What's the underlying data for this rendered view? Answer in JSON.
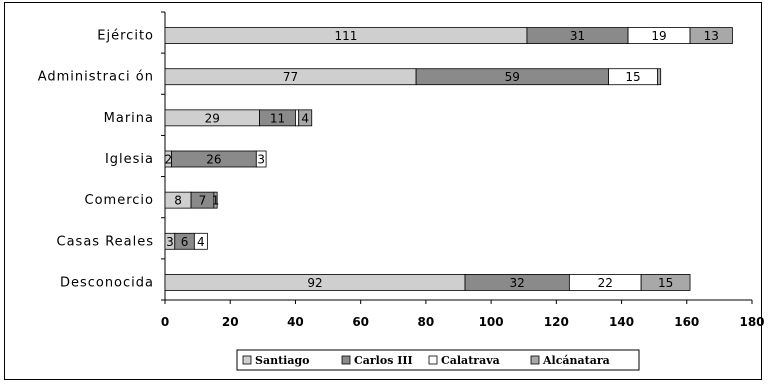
{
  "colors": {
    "Santiago": "#cfcfcf",
    "Carlos III": "#8a8a8a",
    "Calatrava": "#ffffff",
    "Alcánatara": "#a8a8a8"
  },
  "chart_data": {
    "type": "bar",
    "orientation": "horizontal",
    "stacked": true,
    "categories": [
      "Ejército",
      "Administración",
      "Marina",
      "Iglesia",
      "Comercio",
      "Casas Reales",
      "Desconocida"
    ],
    "category_labels": [
      "Ejército",
      "Administraci ón",
      "Marina",
      "Iglesia",
      "Comercio",
      "Casas Reales",
      "Desconocida"
    ],
    "series": [
      {
        "name": "Santiago",
        "values": [
          111,
          77,
          29,
          2,
          8,
          3,
          92
        ]
      },
      {
        "name": "Carlos III",
        "values": [
          31,
          59,
          11,
          26,
          7,
          6,
          32
        ]
      },
      {
        "name": "Calatrava",
        "values": [
          19,
          15,
          1,
          3,
          0,
          4,
          22
        ]
      },
      {
        "name": "Alcánatara",
        "values": [
          13,
          1,
          4,
          0,
          1,
          0,
          15
        ]
      }
    ],
    "data_labels": [
      [
        "111",
        "31",
        "19",
        "13"
      ],
      [
        "77",
        "59",
        "15",
        ""
      ],
      [
        "29",
        "11",
        "",
        "4"
      ],
      [
        "2",
        "26",
        "3",
        ""
      ],
      [
        "8",
        "7",
        "",
        "1"
      ],
      [
        "3",
        "6",
        "4",
        ""
      ],
      [
        "92",
        "32",
        "22",
        "15"
      ]
    ],
    "xlim": [
      0,
      180
    ],
    "xticks": [
      "0",
      "20",
      "40",
      "60",
      "80",
      "100",
      "120",
      "140",
      "160",
      "180"
    ],
    "legend_position": "bottom",
    "legend_labels": [
      "Santiago",
      "Carlos III",
      "Calatrava",
      "Alcánatara"
    ],
    "grid": false
  }
}
